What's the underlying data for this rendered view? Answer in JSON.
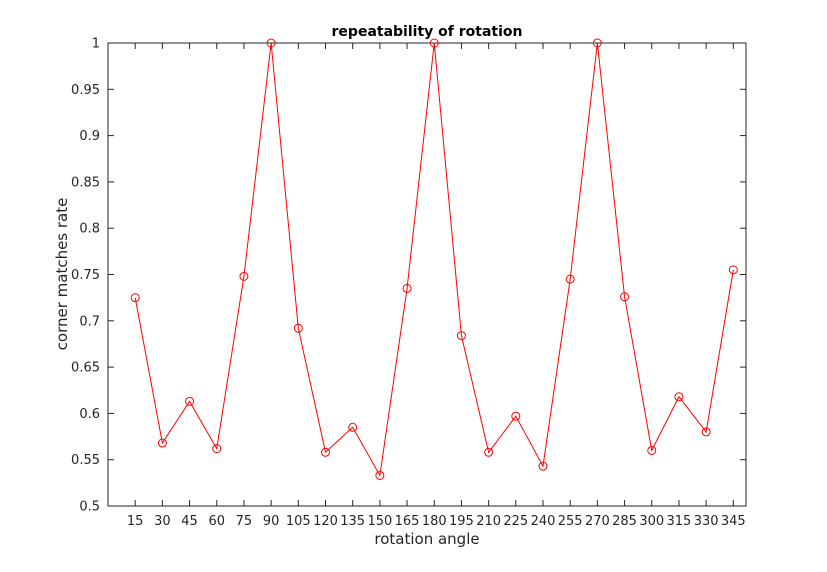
{
  "chart_data": {
    "type": "line",
    "title": "repeatability of rotation",
    "xlabel": "rotation angle",
    "ylabel": "corner matches rate",
    "x": [
      15,
      30,
      45,
      60,
      75,
      90,
      105,
      120,
      135,
      150,
      165,
      180,
      195,
      210,
      225,
      240,
      255,
      270,
      285,
      300,
      315,
      330,
      345
    ],
    "series": [
      {
        "values": [
          0.725,
          0.568,
          0.613,
          0.562,
          0.748,
          1.0,
          0.692,
          0.558,
          0.585,
          0.533,
          0.735,
          1.0,
          0.684,
          0.558,
          0.597,
          0.543,
          0.745,
          1.0,
          0.726,
          0.56,
          0.618,
          0.58,
          0.755
        ],
        "color": "#ff0000",
        "marker": "circle"
      }
    ],
    "xlim": [
      0,
      352
    ],
    "ylim": [
      0.5,
      1.0
    ],
    "xticks": [
      "15",
      "30",
      "45",
      "60",
      "75",
      "90",
      "105",
      "120",
      "135",
      "150",
      "165",
      "180",
      "195",
      "210",
      "225",
      "240",
      "255",
      "270",
      "285",
      "300",
      "315",
      "330",
      "345"
    ],
    "yticks": [
      "0.5",
      "0.55",
      "0.6",
      "0.65",
      "0.7",
      "0.75",
      "0.8",
      "0.85",
      "0.9",
      "0.95",
      "1"
    ],
    "grid": false,
    "box": true
  }
}
